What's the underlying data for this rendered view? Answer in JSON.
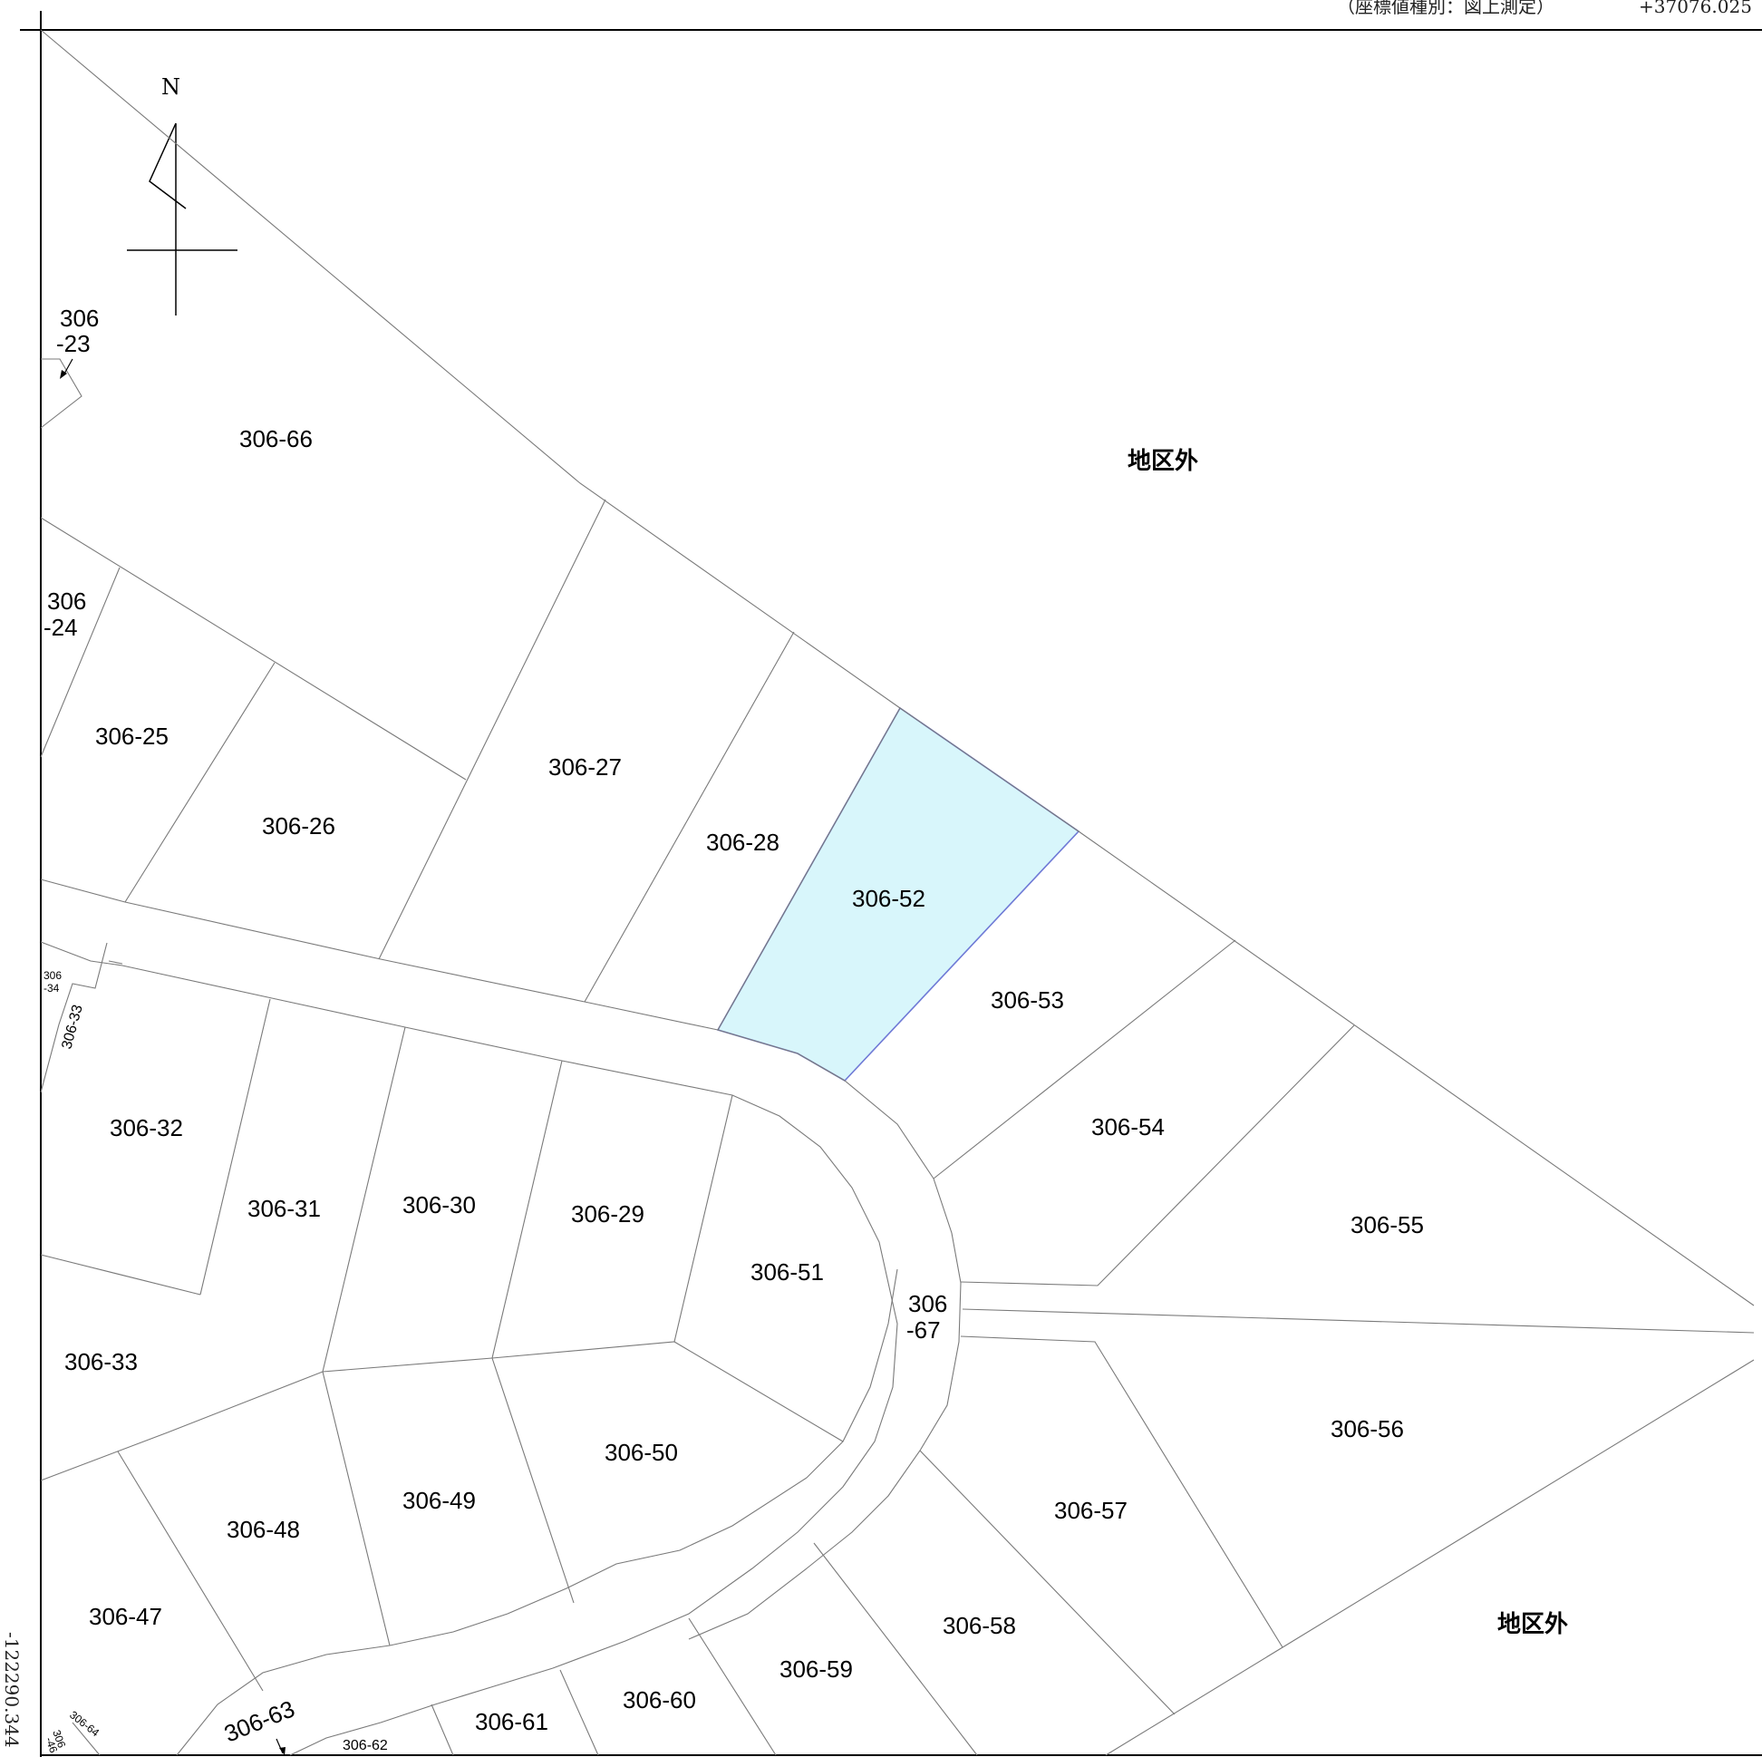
{
  "header": {
    "coordinate_type": "（座標値種別：図上測定）",
    "top_right_coordinate": "+37076.025",
    "left_bottom_coordinate": "-122290.344"
  },
  "north_label": "N",
  "outside_district": [
    "地区外",
    "地区外"
  ],
  "highlight_color": "#d8f6fb",
  "parcels": {
    "p306_23_a": "306",
    "p306_23_b": "-23",
    "p306_66": "306-66",
    "p306_24_a": "306",
    "p306_24_b": "-24",
    "p306_25": "306-25",
    "p306_26": "306-26",
    "p306_27": "306-27",
    "p306_28": "306-28",
    "p306_52": "306-52",
    "p306_53": "306-53",
    "p306_54": "306-54",
    "p306_55": "306-55",
    "p306_34_a": "306",
    "p306_34_b": "-34",
    "p306_33_small": "306-33",
    "p306_32": "306-32",
    "p306_31": "306-31",
    "p306_30": "306-30",
    "p306_29": "306-29",
    "p306_51": "306-51",
    "p306_67_a": "306",
    "p306_67_b": "-67",
    "p306_33": "306-33",
    "p306_50": "306-50",
    "p306_49": "306-49",
    "p306_48": "306-48",
    "p306_56": "306-56",
    "p306_57": "306-57",
    "p306_47": "306-47",
    "p306_58": "306-58",
    "p306_59": "306-59",
    "p306_60": "306-60",
    "p306_61": "306-61",
    "p306_62": "306-62",
    "p306_63": "306-63",
    "p306_64": "306-64",
    "p306_46_a": "306",
    "p306_46_b": "-46"
  }
}
